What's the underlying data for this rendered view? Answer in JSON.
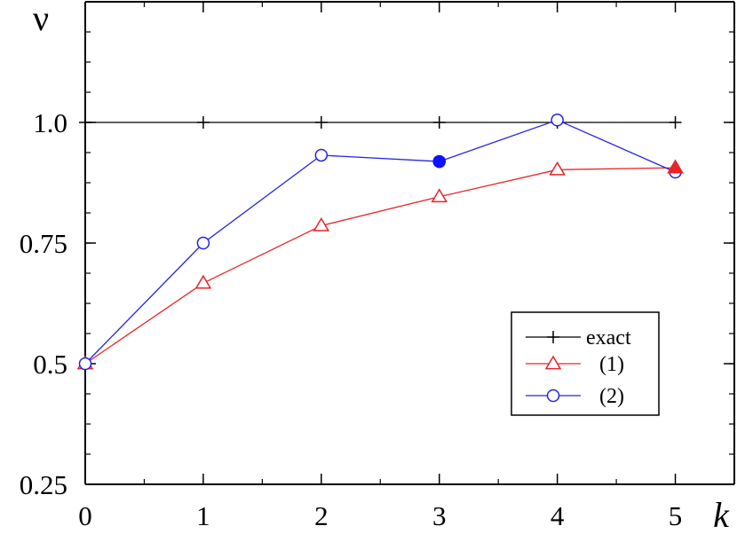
{
  "chart_data": {
    "type": "line",
    "xlabel": "k",
    "ylabel": "ν",
    "xlim": [
      0,
      5.5
    ],
    "ylim": [
      0.25,
      1.25
    ],
    "x_ticks": [
      0,
      1,
      2,
      3,
      4,
      5
    ],
    "x_tick_labels": [
      "0",
      "1",
      "2",
      "3",
      "4",
      "5"
    ],
    "y_ticks": [
      0.25,
      0.5,
      0.75,
      1.0
    ],
    "y_tick_labels": [
      "0.25",
      "0.5",
      "0.75",
      "1.0"
    ],
    "grid": false,
    "legend_position": "bottom-right",
    "series": [
      {
        "name": "exact",
        "color": "#000000",
        "marker": "plus",
        "x": [
          0,
          1,
          2,
          3,
          4,
          5
        ],
        "y": [
          1.0,
          1.0,
          1.0,
          1.0,
          1.0,
          1.0
        ]
      },
      {
        "name": "(1)",
        "color": "#e8242a",
        "marker": "triangle-open",
        "x": [
          0,
          1,
          2,
          3,
          4,
          5
        ],
        "y": [
          0.5,
          0.667,
          0.786,
          0.846,
          0.902,
          0.906
        ]
      },
      {
        "name": "(2)",
        "color": "#2424e0",
        "marker": "circle-open",
        "x": [
          0,
          1,
          2,
          3,
          4,
          5
        ],
        "y": [
          0.5,
          0.75,
          0.932,
          0.919,
          1.005,
          0.897
        ]
      }
    ],
    "highlighted_points": [
      {
        "series": "(2)",
        "x": 3,
        "y": 0.919,
        "marker": "circle-filled",
        "color": "#1010ff"
      },
      {
        "series": "(1)",
        "x": 5,
        "y": 0.906,
        "marker": "triangle-filled",
        "color": "#e8242a"
      }
    ]
  }
}
